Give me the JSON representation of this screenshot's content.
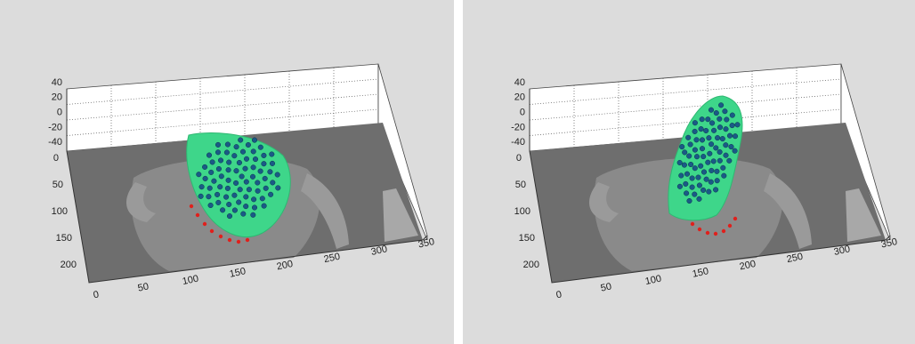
{
  "panels": [
    {
      "z_ticks": [
        40,
        20,
        0,
        -20,
        -40
      ],
      "y_ticks": [
        0,
        50,
        100,
        150,
        200
      ],
      "x_ticks": [
        0,
        50,
        100,
        150,
        200,
        250,
        300,
        350
      ]
    },
    {
      "z_ticks": [
        40,
        20,
        0,
        -20,
        -40
      ],
      "y_ticks": [
        0,
        50,
        100,
        150,
        200
      ],
      "x_ticks": [
        0,
        50,
        100,
        150,
        200,
        250,
        300,
        350
      ]
    }
  ]
}
